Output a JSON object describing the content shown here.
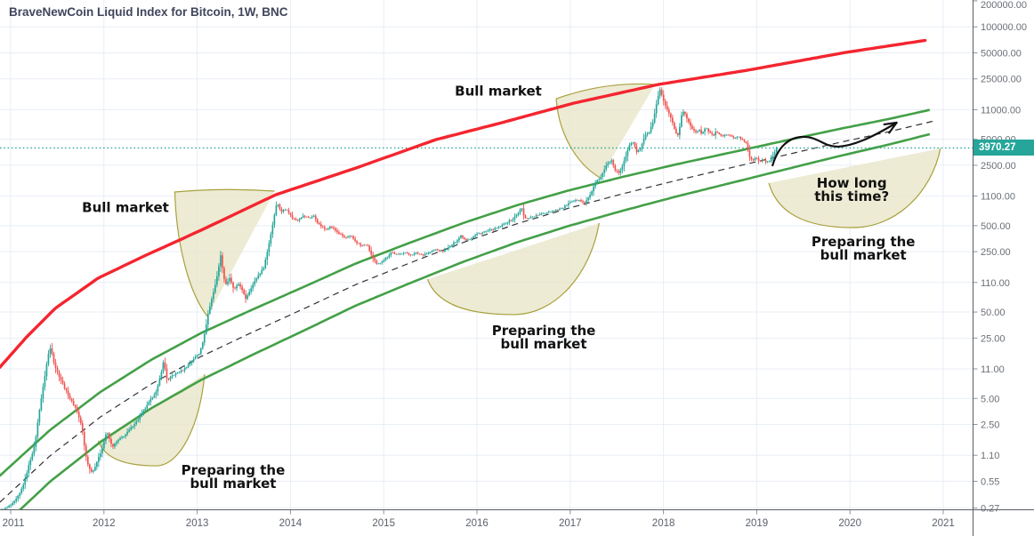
{
  "header": {
    "title": "BraveNewCoin Liquid Index for Bitcoin, 1W, BNC"
  },
  "price_scale": {
    "current_price": 3970.27,
    "current_price_label": "3970.27",
    "ticks": [
      {
        "label": "200000.00",
        "value": 200000
      },
      {
        "label": "100000.00",
        "value": 100000
      },
      {
        "label": "50000.00",
        "value": 50000
      },
      {
        "label": "25000.00",
        "value": 25000
      },
      {
        "label": "11000.00",
        "value": 11000
      },
      {
        "label": "5000.00",
        "value": 5000
      },
      {
        "label": "2500.00",
        "value": 2500
      },
      {
        "label": "1100.00",
        "value": 1100
      },
      {
        "label": "500.00",
        "value": 500
      },
      {
        "label": "250.00",
        "value": 250
      },
      {
        "label": "110.00",
        "value": 110
      },
      {
        "label": "50.00",
        "value": 50
      },
      {
        "label": "25.00",
        "value": 25
      },
      {
        "label": "11.00",
        "value": 11
      },
      {
        "label": "5.00",
        "value": 5
      },
      {
        "label": "2.50",
        "value": 2.5
      },
      {
        "label": "1.10",
        "value": 1.1
      },
      {
        "label": "0.55",
        "value": 0.55
      },
      {
        "label": "0.27",
        "value": 0.27
      }
    ]
  },
  "time_scale": {
    "ticks": [
      {
        "label": "2011",
        "year": 2011
      },
      {
        "label": "2012",
        "year": 2012
      },
      {
        "label": "2013",
        "year": 2013
      },
      {
        "label": "2014",
        "year": 2014
      },
      {
        "label": "2015",
        "year": 2015
      },
      {
        "label": "2016",
        "year": 2016
      },
      {
        "label": "2017",
        "year": 2017
      },
      {
        "label": "2018",
        "year": 2018
      },
      {
        "label": "2019",
        "year": 2019
      },
      {
        "label": "2020",
        "year": 2020
      },
      {
        "label": "2021",
        "year": 2021
      }
    ]
  },
  "colors": {
    "background": "#ffffff",
    "grid": "#e8edf5",
    "axis_border": "#585d66",
    "tick_mark": "#8d939b",
    "price_tick_text": "#6a7078",
    "time_tick_text": "#5a606b",
    "candle_up": "#26a69a",
    "candle_down": "#ef5350",
    "current_price": "#26a69a",
    "red_curve": "#f4252f",
    "green_line": "#43a047",
    "dashed_mid": "#333333",
    "shape_fill": "#e9e6c9",
    "shape_stroke": "#a8a13c",
    "annotation_text": "#111111",
    "arrow": "#111111"
  },
  "chart_data": {
    "type": "candlestick",
    "title": "BraveNewCoin Liquid Index for Bitcoin, 1W, BNC",
    "timeframe": "1W",
    "x_axis": {
      "unit": "year",
      "range": [
        2010.89,
        2021.06
      ],
      "scale": "linear",
      "grid": true
    },
    "y_axis": {
      "unit": "USD",
      "range": [
        0.25,
        210000
      ],
      "scale": "log",
      "grid": true
    },
    "last_price": 3970.27,
    "candles_weekly_path": [
      [
        2010.905,
        0.254
      ],
      [
        2010.962,
        0.273
      ],
      [
        2011.03,
        0.307
      ],
      [
        2011.095,
        0.39
      ],
      [
        2011.153,
        0.569
      ],
      [
        2011.2,
        0.893
      ],
      [
        2011.258,
        1.43
      ],
      [
        2011.305,
        3.52
      ],
      [
        2011.353,
        7.35
      ],
      [
        2011.4,
        15.7
      ],
      [
        2011.43,
        19.9
      ],
      [
        2011.468,
        12.4
      ],
      [
        2011.515,
        9.31
      ],
      [
        2011.573,
        6.84
      ],
      [
        2011.64,
        4.91
      ],
      [
        2011.706,
        3.7
      ],
      [
        2011.763,
        2.36
      ],
      [
        2011.8,
        1.16
      ],
      [
        2011.84,
        0.774
      ],
      [
        2011.878,
        0.7
      ],
      [
        2011.926,
        0.936
      ],
      [
        2011.973,
        1.24
      ],
      [
        2012.03,
        2.09
      ],
      [
        2012.088,
        1.37
      ],
      [
        2012.155,
        1.65
      ],
      [
        2012.23,
        1.9
      ],
      [
        2012.3,
        2.36
      ],
      [
        2012.365,
        2.85
      ],
      [
        2012.44,
        3.78
      ],
      [
        2012.51,
        5.03
      ],
      [
        2012.565,
        6.08
      ],
      [
        2012.61,
        9.53
      ],
      [
        2012.64,
        13.6
      ],
      [
        2012.68,
        7.89
      ],
      [
        2012.727,
        9.1
      ],
      [
        2012.78,
        9.77
      ],
      [
        2012.85,
        10.7
      ],
      [
        2012.91,
        12.4
      ],
      [
        2012.965,
        14.6
      ],
      [
        2013.02,
        16.4
      ],
      [
        2013.07,
        24.6
      ],
      [
        2013.118,
        48.9
      ],
      [
        2013.166,
        78.5
      ],
      [
        2013.21,
        123
      ],
      [
        2013.25,
        228
      ],
      [
        2013.3,
        102
      ],
      [
        2013.347,
        123
      ],
      [
        2013.395,
        90.4
      ],
      [
        2013.45,
        107
      ],
      [
        2013.52,
        71.4
      ],
      [
        2013.586,
        99.5
      ],
      [
        2013.653,
        132
      ],
      [
        2013.71,
        160
      ],
      [
        2013.757,
        263
      ],
      [
        2013.805,
        486
      ],
      [
        2013.853,
        940
      ],
      [
        2013.9,
        728
      ],
      [
        2013.96,
        779
      ],
      [
        2014.015,
        618
      ],
      [
        2014.07,
        574
      ],
      [
        2014.13,
        648
      ],
      [
        2014.2,
        618
      ],
      [
        2014.25,
        648
      ],
      [
        2014.3,
        522
      ],
      [
        2014.37,
        455
      ],
      [
        2014.435,
        488
      ],
      [
        2014.51,
        414
      ],
      [
        2014.59,
        360
      ],
      [
        2014.65,
        377
      ],
      [
        2014.7,
        327
      ],
      [
        2014.76,
        290
      ],
      [
        2014.82,
        304
      ],
      [
        2014.88,
        213
      ],
      [
        2014.93,
        176
      ],
      [
        2014.97,
        189
      ],
      [
        2015.03,
        213
      ],
      [
        2015.08,
        246
      ],
      [
        2015.15,
        229
      ],
      [
        2015.22,
        246
      ],
      [
        2015.28,
        229
      ],
      [
        2015.35,
        240
      ],
      [
        2015.42,
        229
      ],
      [
        2015.49,
        246
      ],
      [
        2015.56,
        264
      ],
      [
        2015.63,
        252
      ],
      [
        2015.7,
        282
      ],
      [
        2015.77,
        326
      ],
      [
        2015.83,
        385
      ],
      [
        2015.88,
        340
      ],
      [
        2015.93,
        356
      ],
      [
        2016.0,
        400
      ],
      [
        2016.07,
        420
      ],
      [
        2016.13,
        441
      ],
      [
        2016.2,
        462
      ],
      [
        2016.26,
        497
      ],
      [
        2016.32,
        546
      ],
      [
        2016.39,
        601
      ],
      [
        2016.45,
        728
      ],
      [
        2016.48,
        800
      ],
      [
        2016.51,
        601
      ],
      [
        2016.58,
        630
      ],
      [
        2016.65,
        660
      ],
      [
        2016.72,
        693
      ],
      [
        2016.78,
        728
      ],
      [
        2016.85,
        764
      ],
      [
        2016.92,
        800
      ],
      [
        2016.98,
        900
      ],
      [
        2017.04,
        962
      ],
      [
        2017.1,
        1010
      ],
      [
        2017.155,
        900
      ],
      [
        2017.21,
        1120
      ],
      [
        2017.27,
        1560
      ],
      [
        2017.33,
        1840
      ],
      [
        2017.39,
        2510
      ],
      [
        2017.445,
        2900
      ],
      [
        2017.48,
        2230
      ],
      [
        2017.53,
        2030
      ],
      [
        2017.585,
        2900
      ],
      [
        2017.63,
        4240
      ],
      [
        2017.67,
        4760
      ],
      [
        2017.71,
        3590
      ],
      [
        2017.75,
        3840
      ],
      [
        2017.8,
        5480
      ],
      [
        2017.845,
        6030
      ],
      [
        2017.89,
        8030
      ],
      [
        2017.935,
        14500
      ],
      [
        2017.965,
        18900
      ],
      [
        2018.01,
        12800
      ],
      [
        2018.05,
        10300
      ],
      [
        2018.09,
        8190
      ],
      [
        2018.13,
        6030
      ],
      [
        2018.16,
        5480
      ],
      [
        2018.19,
        9270
      ],
      [
        2018.22,
        10700
      ],
      [
        2018.26,
        8190
      ],
      [
        2018.3,
        6930
      ],
      [
        2018.34,
        6030
      ],
      [
        2018.38,
        6460
      ],
      [
        2018.41,
        5760
      ],
      [
        2018.45,
        6930
      ],
      [
        2018.49,
        6030
      ],
      [
        2018.53,
        5480
      ],
      [
        2018.56,
        6030
      ],
      [
        2018.6,
        5760
      ],
      [
        2018.64,
        5350
      ],
      [
        2018.68,
        5760
      ],
      [
        2018.72,
        5480
      ],
      [
        2018.75,
        5090
      ],
      [
        2018.79,
        5350
      ],
      [
        2018.84,
        5090
      ],
      [
        2018.89,
        4510
      ],
      [
        2018.92,
        3160
      ],
      [
        2018.95,
        2800
      ],
      [
        2018.99,
        3080
      ],
      [
        2019.025,
        2740
      ],
      [
        2019.06,
        2930
      ],
      [
        2019.1,
        2680
      ],
      [
        2019.14,
        2800
      ],
      [
        2019.18,
        3370
      ],
      [
        2019.215,
        3970.27
      ]
    ],
    "resistance_curve": {
      "name": "logarithmic growth resistance",
      "color": "#f4252f",
      "points": [
        [
          2010.885,
          11.5
        ],
        [
          2011.172,
          25.8
        ],
        [
          2011.477,
          55.1
        ],
        [
          2011.935,
          123
        ],
        [
          2012.412,
          217.5
        ],
        [
          2013.042,
          443
        ],
        [
          2013.843,
          1140
        ],
        [
          2014.702,
          2323
        ],
        [
          2015.561,
          4955
        ],
        [
          2016.229,
          7586
        ],
        [
          2017.04,
          13100
        ],
        [
          2017.947,
          21540
        ],
        [
          2018.901,
          31480
        ],
        [
          2019.95,
          50470
        ],
        [
          2020.837,
          70500
        ]
      ]
    },
    "channel": {
      "name": "growth channel",
      "line_color": "#43a047",
      "mid_line_color": "#333333",
      "mid_points": [
        [
          2010.885,
          0.315
        ],
        [
          2011.42,
          1.08
        ],
        [
          2011.964,
          3.06
        ],
        [
          2012.508,
          7.35
        ],
        [
          2013.042,
          15.3
        ],
        [
          2013.586,
          29.0
        ],
        [
          2014.13,
          53.8
        ],
        [
          2014.7,
          104
        ],
        [
          2015.275,
          184
        ],
        [
          2015.847,
          318
        ],
        [
          2016.42,
          522
        ],
        [
          2016.99,
          800
        ],
        [
          2017.565,
          1170
        ],
        [
          2018.137,
          1668
        ],
        [
          2018.71,
          2323
        ],
        [
          2019.28,
          3236
        ],
        [
          2019.855,
          4508
        ],
        [
          2020.427,
          6138
        ],
        [
          2020.904,
          8150
        ]
      ],
      "width_ratio_start": 2.03,
      "width_ratio_end": 1.38
    },
    "shapes": [
      {
        "id": "lens-2013-bull",
        "type": "sail",
        "top_left": [
          2012.76,
          1225
        ],
        "tip": [
          2013.83,
          1255
        ],
        "bottom": [
          2013.11,
          44.5
        ]
      },
      {
        "id": "lens-2017-bull",
        "type": "sail",
        "top_left": [
          2016.85,
          14700
        ],
        "tip": [
          2017.91,
          21500
        ],
        "bottom": [
          2017.32,
          1790
        ]
      },
      {
        "id": "lens-2012-accum",
        "type": "bowl",
        "left": [
          2011.94,
          1.614
        ],
        "right": [
          2013.08,
          9.53
        ],
        "bottom": [
          2012.56,
          0.83
        ]
      },
      {
        "id": "lens-2015-accum",
        "type": "bowl",
        "left": [
          2015.47,
          120
        ],
        "right": [
          2017.31,
          535
        ],
        "bottom": [
          2016.39,
          46.7
        ]
      },
      {
        "id": "lens-2018-accum",
        "type": "bowl",
        "left": [
          2019.13,
          1556
        ],
        "right": [
          2020.97,
          3915
        ],
        "bottom": [
          2020.03,
          475
        ]
      }
    ],
    "annotations": [
      {
        "id": "bull-market-1",
        "text": "Bull market",
        "t": 2012.231,
        "p": 820
      },
      {
        "id": "bull-market-2",
        "text": "Bull market",
        "t": 2016.229,
        "p": 18250
      },
      {
        "id": "preparing-1",
        "text": "Preparing the\nbull market",
        "t": 2013.385,
        "p": 0.597
      },
      {
        "id": "preparing-2",
        "text": "Preparing the\nbull market",
        "t": 2016.716,
        "p": 24.6
      },
      {
        "id": "how-long",
        "text": "How long\nthis time?",
        "t": 2020.019,
        "p": 1256
      },
      {
        "id": "preparing-3",
        "text": "Preparing the\nbull market",
        "t": 2020.143,
        "p": 263
      }
    ],
    "arrow": {
      "name": "projected recovery arrow",
      "color": "#111111",
      "points": [
        [
          2019.17,
          2495
        ],
        [
          2019.5,
          5330
        ],
        [
          2019.87,
          4100
        ],
        [
          2020.5,
          7780
        ]
      ]
    }
  }
}
